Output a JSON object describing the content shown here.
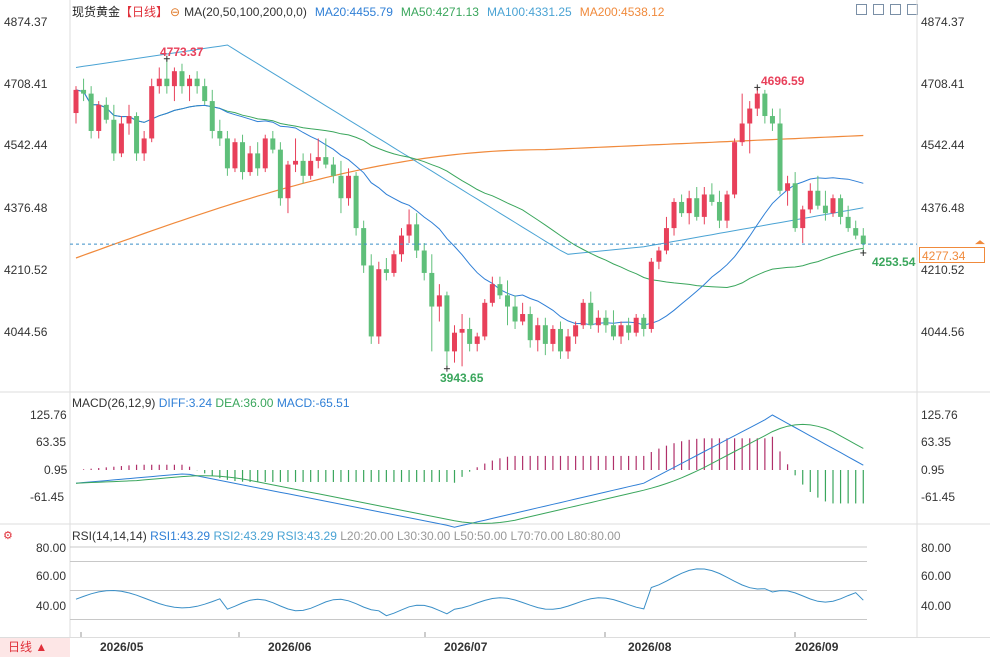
{
  "header": {
    "title": "现货黄金",
    "timeframe_tag": "【日线】",
    "ma_label": "MA(20,50,100,200,0,0)",
    "ma20": "MA20:4455.79",
    "ma50": "MA50:4271.13",
    "ma100": "MA100:4331.25",
    "ma200": "MA200:4538.12"
  },
  "macd_header": {
    "label": "MACD(26,12,9)",
    "diff": "DIFF:3.24",
    "dea": "DEA:36.00",
    "macd": "MACD:-65.51"
  },
  "rsi_header": {
    "label": "RSI(14,14,14)",
    "rsi1": "RSI1:43.29",
    "rsi2": "RSI2:43.29",
    "rsi3": "RSI3:43.29",
    "l20": "L20:20.00",
    "l30": "L30:30.00",
    "l50": "L50:50.00",
    "l70": "L70:70.00",
    "l80": "L80:80.00"
  },
  "price_axis": [
    "4874.37",
    "4708.41",
    "4542.44",
    "4376.48",
    "4210.52",
    "4044.56"
  ],
  "macd_axis": [
    "125.76",
    "63.35",
    "0.95",
    "-61.45"
  ],
  "rsi_axis": [
    "80.00",
    "60.00",
    "40.00"
  ],
  "dates": [
    "2026/05",
    "2026/06",
    "2026/07",
    "2026/08",
    "2026/09"
  ],
  "annotations": {
    "high1": "4773.37",
    "high2": "4696.59",
    "low1": "3943.65",
    "last_low": "4253.54",
    "current": "4277.34"
  },
  "timeframe_button": "日线 ▲",
  "colors": {
    "up": "#e8405a",
    "down": "#5fbf7a",
    "ma20": "#2f7fd6",
    "ma50": "#3aa65c",
    "ma100": "#4aa3d4",
    "ma200": "#f08a3c"
  },
  "chart_data": {
    "type": "candlestick",
    "title": "现货黄金 日线",
    "yrange": [
      3900,
      4900
    ],
    "candles": [
      [
        4628,
        4700,
        4600,
        4690
      ],
      [
        4690,
        4720,
        4660,
        4680
      ],
      [
        4680,
        4700,
        4560,
        4580
      ],
      [
        4580,
        4660,
        4560,
        4650
      ],
      [
        4650,
        4670,
        4600,
        4610
      ],
      [
        4610,
        4650,
        4500,
        4520
      ],
      [
        4520,
        4620,
        4510,
        4600
      ],
      [
        4600,
        4650,
        4570,
        4620
      ],
      [
        4620,
        4630,
        4500,
        4520
      ],
      [
        4520,
        4580,
        4500,
        4560
      ],
      [
        4560,
        4720,
        4550,
        4700
      ],
      [
        4700,
        4750,
        4680,
        4720
      ],
      [
        4720,
        4773,
        4680,
        4700
      ],
      [
        4700,
        4750,
        4660,
        4740
      ],
      [
        4740,
        4760,
        4680,
        4700
      ],
      [
        4700,
        4730,
        4660,
        4720
      ],
      [
        4720,
        4740,
        4680,
        4700
      ],
      [
        4700,
        4720,
        4650,
        4660
      ],
      [
        4660,
        4690,
        4560,
        4580
      ],
      [
        4580,
        4610,
        4540,
        4560
      ],
      [
        4560,
        4580,
        4460,
        4480
      ],
      [
        4480,
        4560,
        4470,
        4550
      ],
      [
        4550,
        4570,
        4450,
        4470
      ],
      [
        4470,
        4540,
        4460,
        4520
      ],
      [
        4520,
        4550,
        4460,
        4480
      ],
      [
        4480,
        4570,
        4470,
        4560
      ],
      [
        4560,
        4580,
        4520,
        4530
      ],
      [
        4530,
        4550,
        4380,
        4400
      ],
      [
        4400,
        4500,
        4360,
        4490
      ],
      [
        4490,
        4560,
        4470,
        4500
      ],
      [
        4500,
        4520,
        4440,
        4460
      ],
      [
        4460,
        4520,
        4450,
        4500
      ],
      [
        4500,
        4560,
        4480,
        4510
      ],
      [
        4510,
        4560,
        4480,
        4490
      ],
      [
        4490,
        4510,
        4440,
        4460
      ],
      [
        4460,
        4500,
        4360,
        4400
      ],
      [
        4400,
        4480,
        4380,
        4460
      ],
      [
        4460,
        4470,
        4300,
        4320
      ],
      [
        4320,
        4340,
        4200,
        4220
      ],
      [
        4220,
        4250,
        4010,
        4030
      ],
      [
        4030,
        4230,
        4010,
        4210
      ],
      [
        4210,
        4240,
        4180,
        4200
      ],
      [
        4200,
        4260,
        4190,
        4250
      ],
      [
        4250,
        4320,
        4230,
        4300
      ],
      [
        4300,
        4370,
        4280,
        4330
      ],
      [
        4330,
        4360,
        4240,
        4260
      ],
      [
        4260,
        4280,
        4180,
        4200
      ],
      [
        4200,
        4250,
        3990,
        4110
      ],
      [
        4110,
        4170,
        4070,
        4140
      ],
      [
        4140,
        4150,
        3950,
        3990
      ],
      [
        3990,
        4060,
        3960,
        4040
      ],
      [
        4040,
        4090,
        3950,
        4050
      ],
      [
        4050,
        4080,
        3990,
        4010
      ],
      [
        4010,
        4040,
        3990,
        4030
      ],
      [
        4030,
        4130,
        4020,
        4120
      ],
      [
        4120,
        4190,
        4110,
        4170
      ],
      [
        4170,
        4190,
        4130,
        4140
      ],
      [
        4140,
        4180,
        4060,
        4110
      ],
      [
        4110,
        4140,
        4050,
        4070
      ],
      [
        4070,
        4120,
        4060,
        4090
      ],
      [
        4090,
        4110,
        4000,
        4020
      ],
      [
        4020,
        4080,
        3990,
        4060
      ],
      [
        4060,
        4080,
        3980,
        4010
      ],
      [
        4010,
        4060,
        3990,
        4050
      ],
      [
        4050,
        4070,
        3970,
        3990
      ],
      [
        3990,
        4050,
        3970,
        4030
      ],
      [
        4030,
        4070,
        4010,
        4060
      ],
      [
        4060,
        4130,
        4050,
        4120
      ],
      [
        4120,
        4150,
        4050,
        4060
      ],
      [
        4060,
        4100,
        4040,
        4080
      ],
      [
        4080,
        4100,
        4040,
        4060
      ],
      [
        4060,
        4100,
        4020,
        4030
      ],
      [
        4030,
        4070,
        4010,
        4060
      ],
      [
        4060,
        4080,
        4020,
        4040
      ],
      [
        4040,
        4090,
        4030,
        4080
      ],
      [
        4080,
        4090,
        4030,
        4050
      ],
      [
        4050,
        4240,
        4040,
        4230
      ],
      [
        4230,
        4270,
        4210,
        4260
      ],
      [
        4260,
        4350,
        4250,
        4320
      ],
      [
        4320,
        4400,
        4300,
        4390
      ],
      [
        4390,
        4410,
        4350,
        4360
      ],
      [
        4360,
        4420,
        4330,
        4400
      ],
      [
        4400,
        4430,
        4340,
        4350
      ],
      [
        4350,
        4430,
        4330,
        4410
      ],
      [
        4410,
        4440,
        4380,
        4390
      ],
      [
        4390,
        4420,
        4320,
        4340
      ],
      [
        4340,
        4420,
        4320,
        4410
      ],
      [
        4410,
        4560,
        4400,
        4550
      ],
      [
        4550,
        4680,
        4540,
        4600
      ],
      [
        4600,
        4660,
        4520,
        4640
      ],
      [
        4640,
        4696,
        4620,
        4680
      ],
      [
        4680,
        4690,
        4600,
        4620
      ],
      [
        4620,
        4640,
        4580,
        4600
      ],
      [
        4600,
        4640,
        4410,
        4420
      ],
      [
        4420,
        4460,
        4380,
        4440
      ],
      [
        4440,
        4470,
        4310,
        4320
      ],
      [
        4320,
        4380,
        4280,
        4370
      ],
      [
        4370,
        4440,
        4360,
        4420
      ],
      [
        4420,
        4460,
        4370,
        4380
      ],
      [
        4380,
        4420,
        4340,
        4360
      ],
      [
        4360,
        4410,
        4350,
        4400
      ],
      [
        4400,
        4410,
        4330,
        4350
      ],
      [
        4350,
        4380,
        4310,
        4320
      ],
      [
        4320,
        4340,
        4290,
        4300
      ],
      [
        4300,
        4320,
        4253,
        4277
      ]
    ]
  }
}
